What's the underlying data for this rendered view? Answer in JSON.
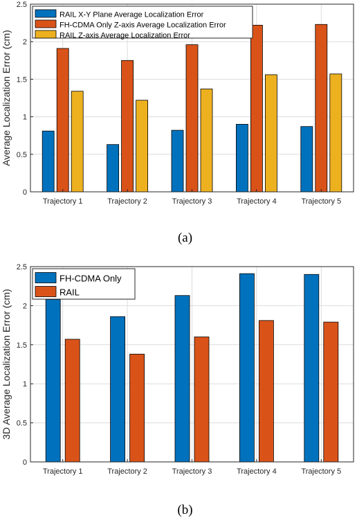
{
  "chart_data": [
    {
      "id": "a",
      "type": "bar",
      "caption": "(a)",
      "ylabel": "Average Localization Error (cm)",
      "xlabel": "",
      "ylim": [
        0,
        2.5
      ],
      "yticks": [
        "0",
        "0.5",
        "1",
        "1.5",
        "2",
        "2.5"
      ],
      "grid": true,
      "legend_position": "top-left",
      "categories": [
        "Trajectory 1",
        "Trajectory 2",
        "Trajectory 3",
        "Trajectory 4",
        "Trajectory 5"
      ],
      "series": [
        {
          "name": "RAIL X-Y Plane Average Localization Error",
          "color": "#0072BD",
          "values": [
            0.81,
            0.63,
            0.82,
            0.9,
            0.87
          ]
        },
        {
          "name": "FH-CDMA Only Z-axis Average Localization Error",
          "color": "#D95319",
          "values": [
            1.91,
            1.75,
            1.96,
            2.22,
            2.23
          ]
        },
        {
          "name": "RAIL Z-axis Average Localization Error",
          "color": "#EDB120",
          "values": [
            1.34,
            1.22,
            1.37,
            1.56,
            1.57
          ]
        }
      ]
    },
    {
      "id": "b",
      "type": "bar",
      "caption": "(b)",
      "ylabel": "3D Average Localization Error (cm)",
      "xlabel": "",
      "ylim": [
        0,
        2.5
      ],
      "yticks": [
        "0",
        "0.5",
        "1",
        "1.5",
        "2",
        "2.5"
      ],
      "grid": true,
      "legend_position": "top-left",
      "categories": [
        "Trajectory 1",
        "Trajectory 2",
        "Trajectory 3",
        "Trajectory 4",
        "Trajectory 5"
      ],
      "series": [
        {
          "name": "FH-CDMA Only",
          "color": "#0072BD",
          "values": [
            2.08,
            1.86,
            2.13,
            2.41,
            2.4
          ]
        },
        {
          "name": "RAIL",
          "color": "#D95319",
          "values": [
            1.57,
            1.38,
            1.6,
            1.81,
            1.79
          ]
        }
      ]
    }
  ]
}
